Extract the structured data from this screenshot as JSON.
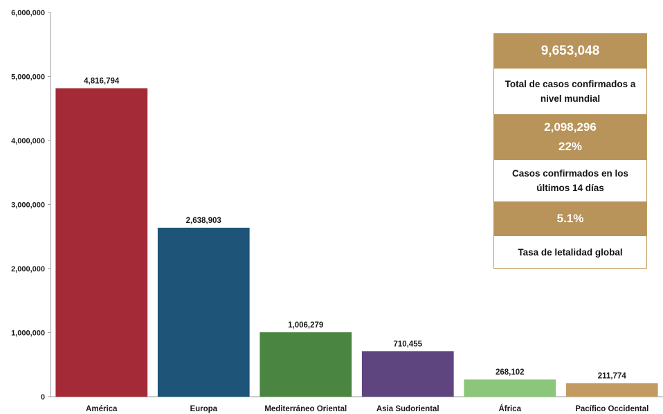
{
  "chart_data": {
    "type": "bar",
    "categories": [
      "América",
      "Europa",
      "Mediterráneo Oriental",
      "Asia Sudoriental",
      "África",
      "Pacífico Occidental"
    ],
    "values": [
      4816794,
      2638903,
      1006279,
      710455,
      268102,
      211774
    ],
    "value_labels": [
      "4,816,794",
      "2,638,903",
      "1,006,279",
      "710,455",
      "268,102",
      "211,774"
    ],
    "colors": [
      "#a32a36",
      "#1e5478",
      "#4a8541",
      "#5e4580",
      "#8cc67a",
      "#c29b62"
    ],
    "ylim": [
      0,
      6000000
    ],
    "yticks": [
      0,
      1000000,
      2000000,
      3000000,
      4000000,
      5000000,
      6000000
    ],
    "ytick_labels": [
      "0",
      "1,000,000",
      "2,000,000",
      "3,000,000",
      "4,000,000",
      "5,000,000",
      "6,000,000"
    ],
    "title": "",
    "xlabel": "",
    "ylabel": "",
    "grid": false,
    "legend": false
  },
  "summary": {
    "total_cases": "9,653,048",
    "total_cases_label": "Total de casos confirmados a nivel mundial",
    "recent_cases": "2,098,296",
    "recent_percent": "22%",
    "recent_cases_label": "Casos confirmados en los últimos 14 días",
    "fatality_rate": "5.1%",
    "fatality_rate_label": "Tasa de letalidad global",
    "band_color": "#b8935a"
  }
}
